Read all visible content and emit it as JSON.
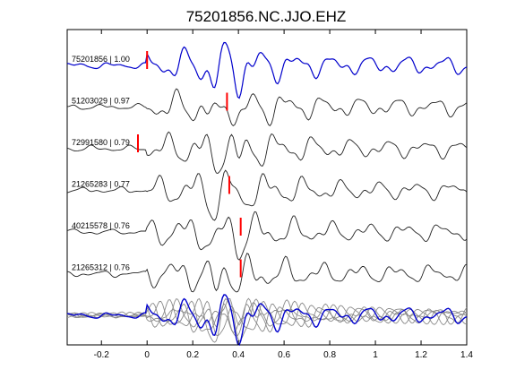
{
  "chart_data": {
    "type": "line",
    "title": "75201856.NC.JJO.EHZ",
    "xlabel": "",
    "ylabel": "",
    "xlim": [
      -0.35,
      1.4
    ],
    "x_ticks": [
      "-0.2",
      "0",
      "0.2",
      "0.4",
      "0.6",
      "0.8",
      "1",
      "1.2",
      "1.4"
    ],
    "x_tick_values": [
      -0.2,
      0,
      0.2,
      0.4,
      0.6,
      0.8,
      1.0,
      1.2,
      1.4
    ],
    "grid": false,
    "colors": {
      "master": "#0000cc",
      "trace": "#222222",
      "overlay": "#8a8a8a",
      "pick": "#ff0000"
    },
    "traces": [
      {
        "label": "75201856 | 1.00",
        "pick_time": 0.0,
        "master": true,
        "seed": 1.3,
        "phase": 0.0
      },
      {
        "label": "51203029 | 0.97",
        "pick_time": 0.35,
        "master": false,
        "seed": 2.7,
        "phase": 0.15
      },
      {
        "label": "72991580 | 0.79",
        "pick_time": -0.04,
        "master": false,
        "seed": 4.1,
        "phase": 0.4
      },
      {
        "label": "21265283 | 0.77",
        "pick_time": 0.36,
        "master": false,
        "seed": 5.9,
        "phase": 0.25
      },
      {
        "label": "40215578 | 0.76",
        "pick_time": 0.41,
        "master": false,
        "seed": 7.3,
        "phase": 0.55
      },
      {
        "label": "21265312 | 0.76",
        "pick_time": 0.41,
        "master": false,
        "seed": 8.8,
        "phase": 0.7
      }
    ]
  }
}
